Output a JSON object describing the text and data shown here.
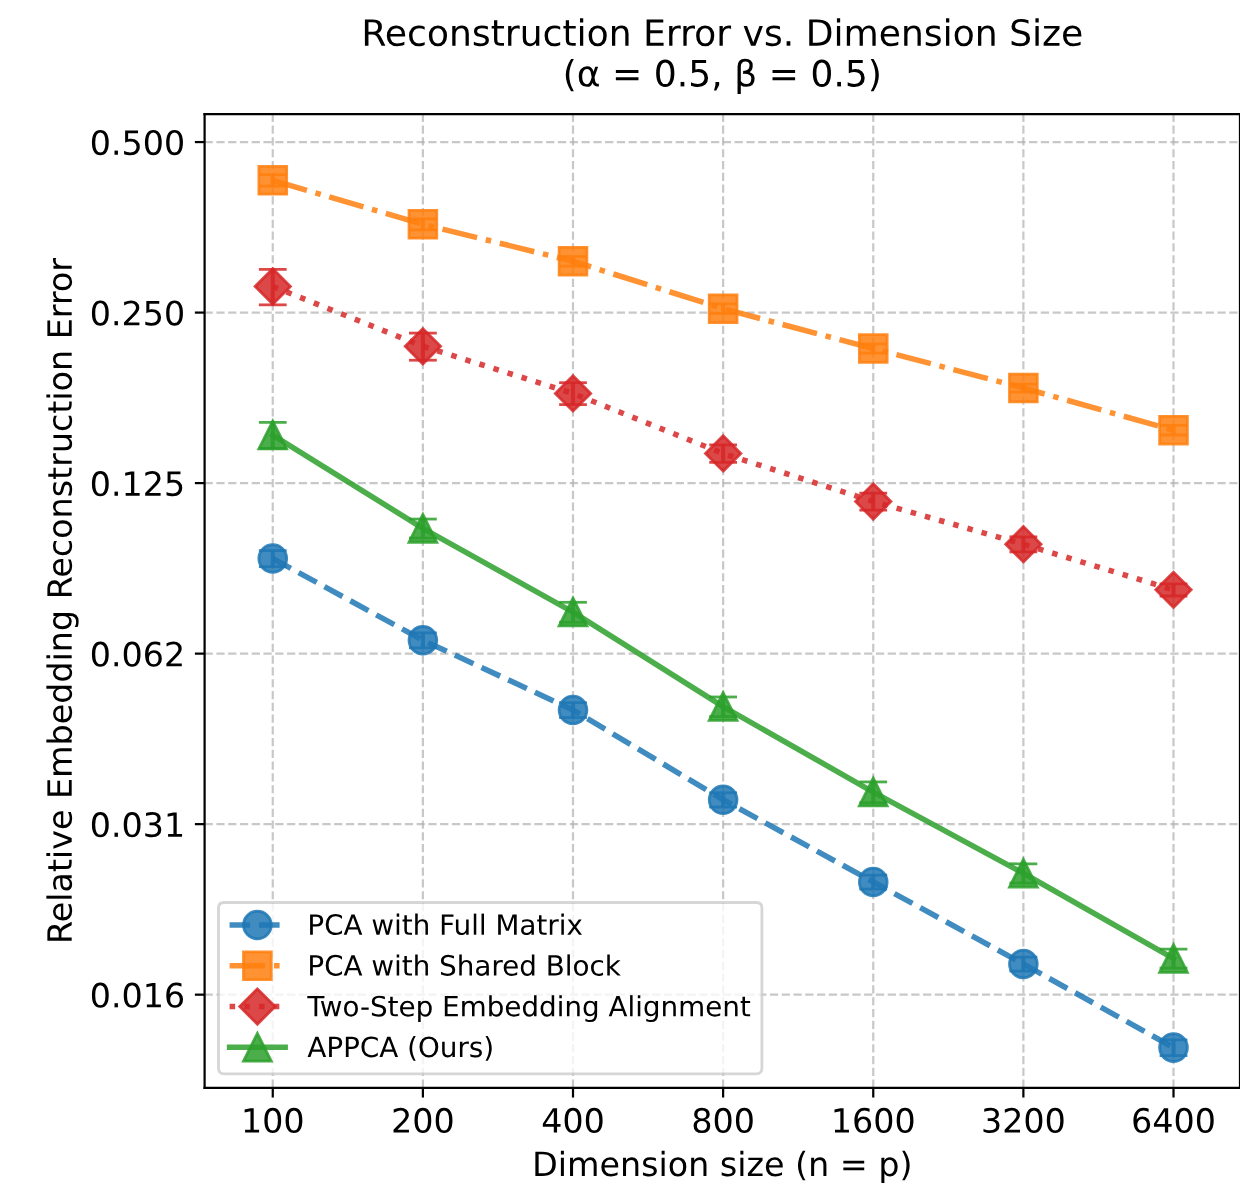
{
  "chart_data": {
    "type": "line",
    "title": "Reconstruction Error vs. Dimension Size\n(α = 0.5, β = 0.5)",
    "xlabel": "Dimension size (n = p)",
    "ylabel": "Relative Embedding Reconstruction Error",
    "log": "xy",
    "x": [
      100,
      200,
      400,
      800,
      1600,
      3200,
      6400
    ],
    "xlim": [
      73,
      8700
    ],
    "xticks": [
      100,
      200,
      400,
      800,
      1600,
      3200,
      6400
    ],
    "ylim": [
      0.0107,
      0.56
    ],
    "yticks": [
      {
        "value": 0.5,
        "label": "0.500"
      },
      {
        "value": 0.25,
        "label": "0.250"
      },
      {
        "value": 0.125,
        "label": "0.125"
      },
      {
        "value": 0.0625,
        "label": "0.062"
      },
      {
        "value": 0.03125,
        "label": "0.031"
      },
      {
        "value": 0.015625,
        "label": "0.016"
      }
    ],
    "grid": true,
    "legend": "bottom left",
    "series": [
      {
        "name": "PCA with Full Matrix",
        "color": "#1f77b4",
        "marker": "circle",
        "line_style": "dashed",
        "values": [
          0.092,
          0.066,
          0.0497,
          0.0345,
          0.0247,
          0.0177,
          0.0126
        ],
        "errors": [
          0.003,
          0.002,
          0.0015,
          0.001,
          0.0007,
          0.0005,
          0.0004
        ]
      },
      {
        "name": "PCA with Shared Block",
        "color": "#ff7f0e",
        "marker": "square",
        "line_style": "dashdot",
        "values": [
          0.428,
          0.358,
          0.308,
          0.254,
          0.216,
          0.184,
          0.155
        ],
        "errors": [
          0.01,
          0.008,
          0.006,
          0.005,
          0.004,
          0.003,
          0.003
        ]
      },
      {
        "name": "Two-Step Embedding Alignment",
        "color": "#d62728",
        "marker": "diamond",
        "line_style": "dotted",
        "values": [
          0.278,
          0.218,
          0.18,
          0.141,
          0.116,
          0.0975,
          0.081
        ],
        "errors": [
          0.02,
          0.012,
          0.008,
          0.005,
          0.004,
          0.003,
          0.002
        ]
      },
      {
        "name": "APPCA (Ours)",
        "color": "#2ca02c",
        "marker": "triangle",
        "line_style": "solid",
        "values": [
          0.152,
          0.104,
          0.074,
          0.0504,
          0.0356,
          0.0256,
          0.0181
        ],
        "errors": [
          0.008,
          0.004,
          0.003,
          0.002,
          0.0015,
          0.001,
          0.0007
        ]
      }
    ]
  }
}
